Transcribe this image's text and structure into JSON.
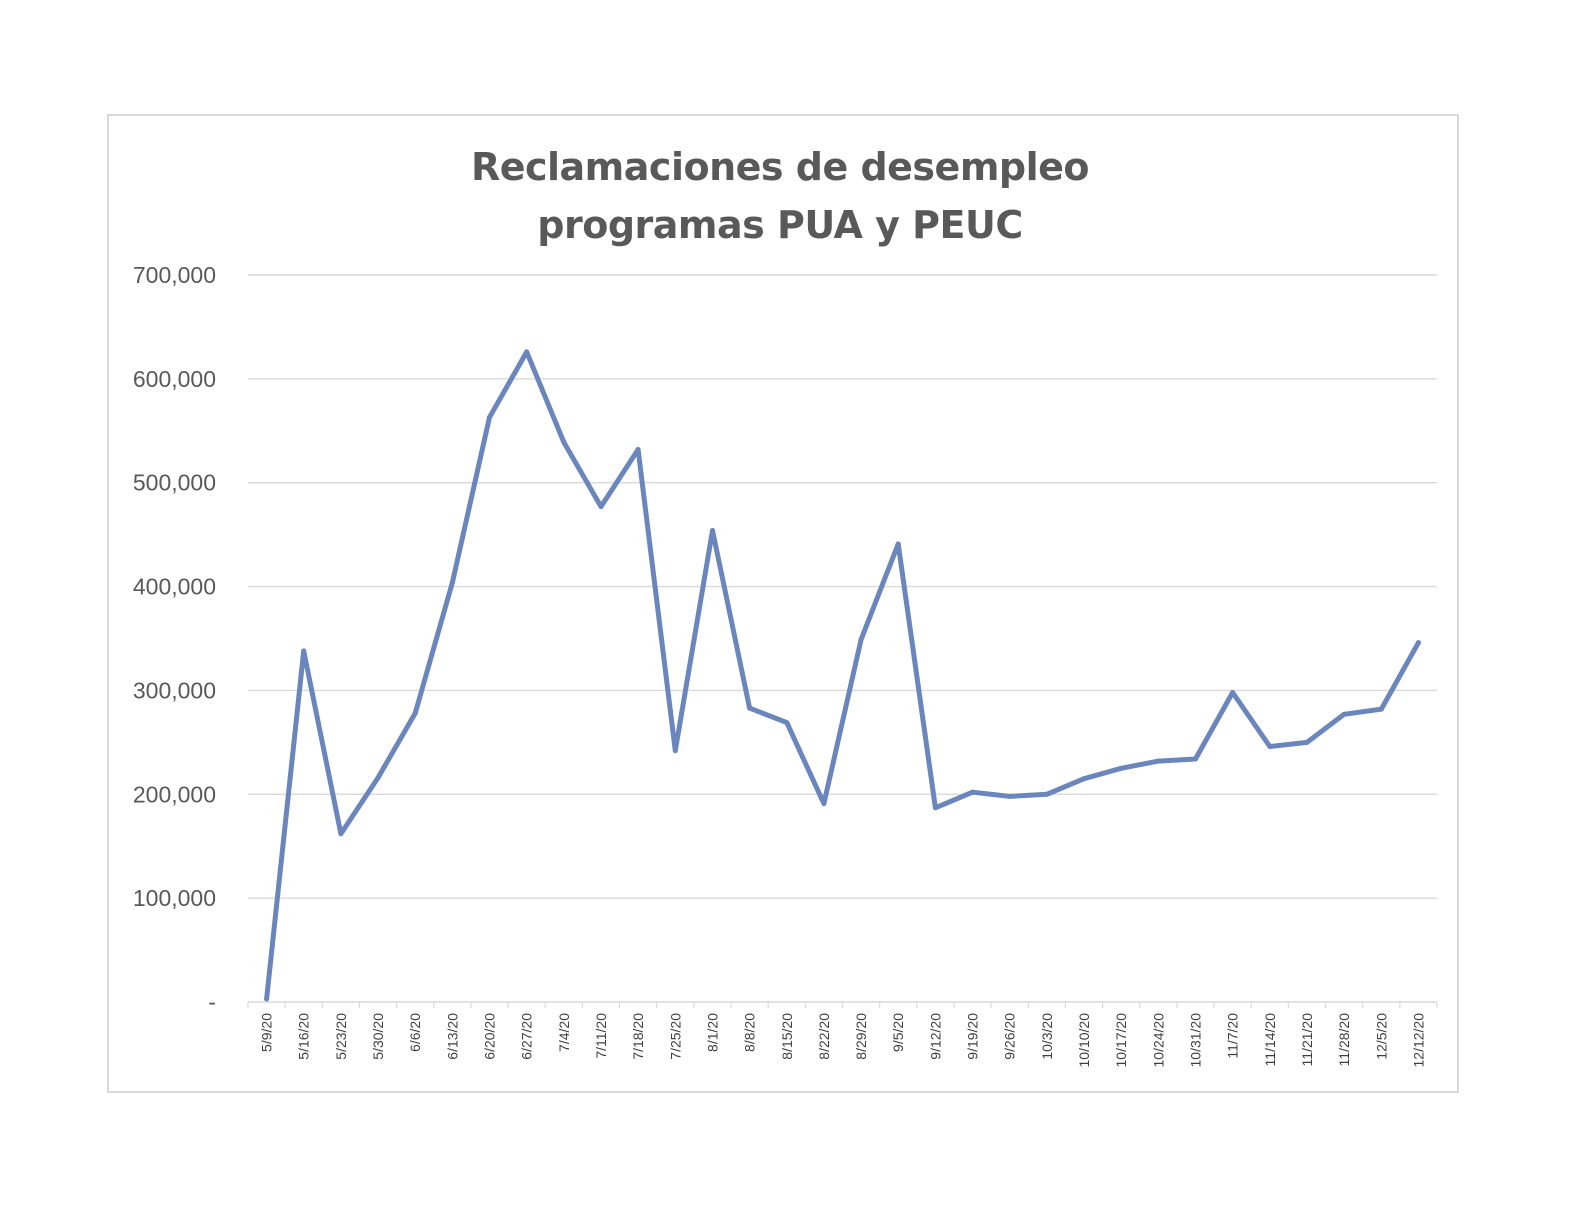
{
  "chart_data": {
    "type": "line",
    "title": "Reclamaciones de desempleo\nprogramas PUA y PEUC",
    "xlabel": "",
    "ylabel": "",
    "ylim": [
      0,
      700000
    ],
    "y_ticks": [
      0,
      100000,
      200000,
      300000,
      400000,
      500000,
      600000,
      700000
    ],
    "y_tick_labels": [
      "-",
      "100,000",
      "200,000",
      "300,000",
      "400,000",
      "500,000",
      "600,000",
      "700,000"
    ],
    "grid": true,
    "line_color": "#6a86bc",
    "categories": [
      "5/9/20",
      "5/16/20",
      "5/23/20",
      "5/30/20",
      "6/6/20",
      "6/13/20",
      "6/20/20",
      "6/27/20",
      "7/4/20",
      "7/11/20",
      "7/18/20",
      "7/25/20",
      "8/1/20",
      "8/8/20",
      "8/15/20",
      "8/22/20",
      "8/29/20",
      "9/5/20",
      "9/12/20",
      "9/19/20",
      "9/26/20",
      "10/3/20",
      "10/10/20",
      "10/17/20",
      "10/24/20",
      "10/31/20",
      "11/7/20",
      "11/14/20",
      "11/21/20",
      "11/28/20",
      "12/5/20",
      "12/12/20"
    ],
    "series": [
      {
        "values": [
          3000,
          338000,
          162000,
          216000,
          278000,
          404000,
          563000,
          626000,
          539000,
          477000,
          532000,
          242000,
          454000,
          283000,
          269000,
          191000,
          349000,
          441000,
          187000,
          202000,
          198000,
          200000,
          215000,
          225000,
          232000,
          234000,
          298000,
          246000,
          250000,
          277000,
          282000,
          346000
        ]
      }
    ]
  }
}
